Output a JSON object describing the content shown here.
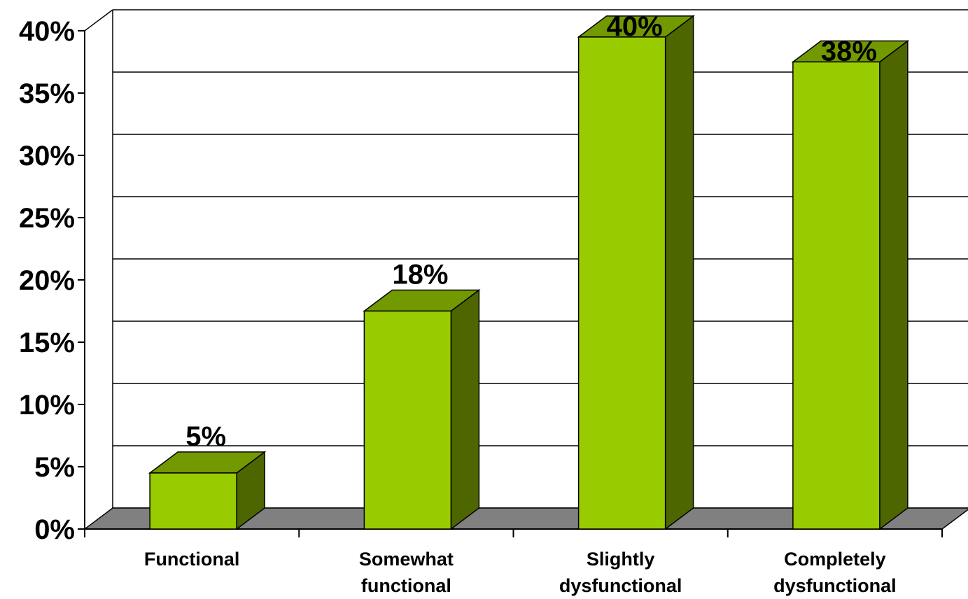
{
  "chart_data": {
    "type": "bar",
    "style": "3d-column",
    "categories": [
      [
        "Functional"
      ],
      [
        "Somewhat",
        "functional"
      ],
      [
        "Slightly",
        "dysfunctional"
      ],
      [
        "Completely",
        "dysfunctional"
      ]
    ],
    "values": [
      4.5,
      17.5,
      39.5,
      37.5
    ],
    "data_labels": [
      "5%",
      "18%",
      "40%",
      "38%"
    ],
    "y_ticks": [
      "0%",
      "5%",
      "10%",
      "15%",
      "20%",
      "25%",
      "30%",
      "35%",
      "40%"
    ],
    "ylim": [
      0,
      40
    ],
    "grid": true,
    "legend": "none",
    "colors": {
      "bar_front": "#99CC00",
      "bar_top": "#739900",
      "bar_side": "#4D6600",
      "floor": "#808080",
      "grid": "#000000"
    }
  }
}
